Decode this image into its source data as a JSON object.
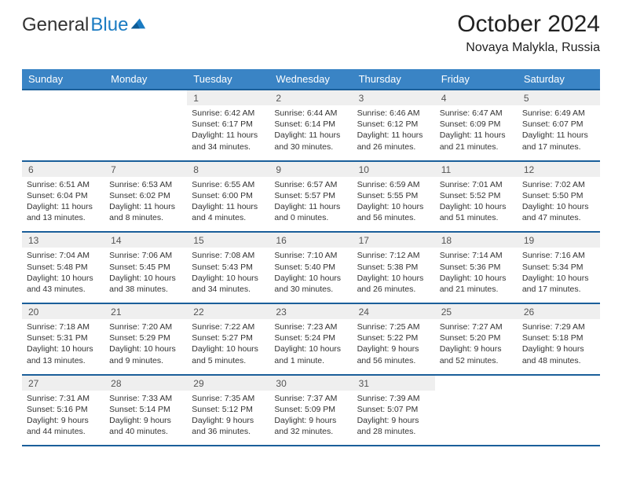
{
  "branding": {
    "name_a": "General",
    "name_b": "Blue"
  },
  "title": "October 2024",
  "subtitle": "Novaya Malykla, Russia",
  "colors": {
    "header": "#3a84c5",
    "border": "#1b5f9a",
    "cell": "#efefef"
  },
  "day_headers": [
    "Sunday",
    "Monday",
    "Tuesday",
    "Wednesday",
    "Thursday",
    "Friday",
    "Saturday"
  ],
  "weeks": [
    [
      null,
      null,
      {
        "n": "1",
        "rise": "Sunrise: 6:42 AM",
        "set": "Sunset: 6:17 PM",
        "day": "Daylight: 11 hours and 34 minutes."
      },
      {
        "n": "2",
        "rise": "Sunrise: 6:44 AM",
        "set": "Sunset: 6:14 PM",
        "day": "Daylight: 11 hours and 30 minutes."
      },
      {
        "n": "3",
        "rise": "Sunrise: 6:46 AM",
        "set": "Sunset: 6:12 PM",
        "day": "Daylight: 11 hours and 26 minutes."
      },
      {
        "n": "4",
        "rise": "Sunrise: 6:47 AM",
        "set": "Sunset: 6:09 PM",
        "day": "Daylight: 11 hours and 21 minutes."
      },
      {
        "n": "5",
        "rise": "Sunrise: 6:49 AM",
        "set": "Sunset: 6:07 PM",
        "day": "Daylight: 11 hours and 17 minutes."
      }
    ],
    [
      {
        "n": "6",
        "rise": "Sunrise: 6:51 AM",
        "set": "Sunset: 6:04 PM",
        "day": "Daylight: 11 hours and 13 minutes."
      },
      {
        "n": "7",
        "rise": "Sunrise: 6:53 AM",
        "set": "Sunset: 6:02 PM",
        "day": "Daylight: 11 hours and 8 minutes."
      },
      {
        "n": "8",
        "rise": "Sunrise: 6:55 AM",
        "set": "Sunset: 6:00 PM",
        "day": "Daylight: 11 hours and 4 minutes."
      },
      {
        "n": "9",
        "rise": "Sunrise: 6:57 AM",
        "set": "Sunset: 5:57 PM",
        "day": "Daylight: 11 hours and 0 minutes."
      },
      {
        "n": "10",
        "rise": "Sunrise: 6:59 AM",
        "set": "Sunset: 5:55 PM",
        "day": "Daylight: 10 hours and 56 minutes."
      },
      {
        "n": "11",
        "rise": "Sunrise: 7:01 AM",
        "set": "Sunset: 5:52 PM",
        "day": "Daylight: 10 hours and 51 minutes."
      },
      {
        "n": "12",
        "rise": "Sunrise: 7:02 AM",
        "set": "Sunset: 5:50 PM",
        "day": "Daylight: 10 hours and 47 minutes."
      }
    ],
    [
      {
        "n": "13",
        "rise": "Sunrise: 7:04 AM",
        "set": "Sunset: 5:48 PM",
        "day": "Daylight: 10 hours and 43 minutes."
      },
      {
        "n": "14",
        "rise": "Sunrise: 7:06 AM",
        "set": "Sunset: 5:45 PM",
        "day": "Daylight: 10 hours and 38 minutes."
      },
      {
        "n": "15",
        "rise": "Sunrise: 7:08 AM",
        "set": "Sunset: 5:43 PM",
        "day": "Daylight: 10 hours and 34 minutes."
      },
      {
        "n": "16",
        "rise": "Sunrise: 7:10 AM",
        "set": "Sunset: 5:40 PM",
        "day": "Daylight: 10 hours and 30 minutes."
      },
      {
        "n": "17",
        "rise": "Sunrise: 7:12 AM",
        "set": "Sunset: 5:38 PM",
        "day": "Daylight: 10 hours and 26 minutes."
      },
      {
        "n": "18",
        "rise": "Sunrise: 7:14 AM",
        "set": "Sunset: 5:36 PM",
        "day": "Daylight: 10 hours and 21 minutes."
      },
      {
        "n": "19",
        "rise": "Sunrise: 7:16 AM",
        "set": "Sunset: 5:34 PM",
        "day": "Daylight: 10 hours and 17 minutes."
      }
    ],
    [
      {
        "n": "20",
        "rise": "Sunrise: 7:18 AM",
        "set": "Sunset: 5:31 PM",
        "day": "Daylight: 10 hours and 13 minutes."
      },
      {
        "n": "21",
        "rise": "Sunrise: 7:20 AM",
        "set": "Sunset: 5:29 PM",
        "day": "Daylight: 10 hours and 9 minutes."
      },
      {
        "n": "22",
        "rise": "Sunrise: 7:22 AM",
        "set": "Sunset: 5:27 PM",
        "day": "Daylight: 10 hours and 5 minutes."
      },
      {
        "n": "23",
        "rise": "Sunrise: 7:23 AM",
        "set": "Sunset: 5:24 PM",
        "day": "Daylight: 10 hours and 1 minute."
      },
      {
        "n": "24",
        "rise": "Sunrise: 7:25 AM",
        "set": "Sunset: 5:22 PM",
        "day": "Daylight: 9 hours and 56 minutes."
      },
      {
        "n": "25",
        "rise": "Sunrise: 7:27 AM",
        "set": "Sunset: 5:20 PM",
        "day": "Daylight: 9 hours and 52 minutes."
      },
      {
        "n": "26",
        "rise": "Sunrise: 7:29 AM",
        "set": "Sunset: 5:18 PM",
        "day": "Daylight: 9 hours and 48 minutes."
      }
    ],
    [
      {
        "n": "27",
        "rise": "Sunrise: 7:31 AM",
        "set": "Sunset: 5:16 PM",
        "day": "Daylight: 9 hours and 44 minutes."
      },
      {
        "n": "28",
        "rise": "Sunrise: 7:33 AM",
        "set": "Sunset: 5:14 PM",
        "day": "Daylight: 9 hours and 40 minutes."
      },
      {
        "n": "29",
        "rise": "Sunrise: 7:35 AM",
        "set": "Sunset: 5:12 PM",
        "day": "Daylight: 9 hours and 36 minutes."
      },
      {
        "n": "30",
        "rise": "Sunrise: 7:37 AM",
        "set": "Sunset: 5:09 PM",
        "day": "Daylight: 9 hours and 32 minutes."
      },
      {
        "n": "31",
        "rise": "Sunrise: 7:39 AM",
        "set": "Sunset: 5:07 PM",
        "day": "Daylight: 9 hours and 28 minutes."
      },
      null,
      null
    ]
  ]
}
